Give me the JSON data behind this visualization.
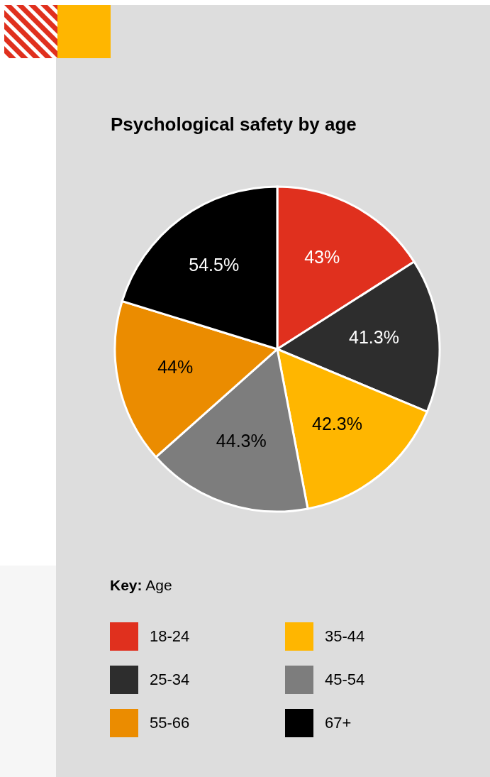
{
  "chart_data": {
    "type": "pie",
    "title": "Psychological safety by age",
    "legend_title": "Key: Age",
    "legend": "bottom",
    "value_labels": [
      "43%",
      "41.3%",
      "42.3%",
      "44.3%",
      "44%",
      "54.5%"
    ],
    "categories": [
      "18-24",
      "25-34",
      "35-44",
      "45-54",
      "55-66",
      "67+"
    ],
    "values": [
      43,
      41.3,
      42.3,
      44.3,
      44,
      54.5
    ],
    "colors": [
      "#e0301e",
      "#2d2d2d",
      "#ffb600",
      "#7d7d7d",
      "#eb8c00",
      "#000000"
    ]
  }
}
